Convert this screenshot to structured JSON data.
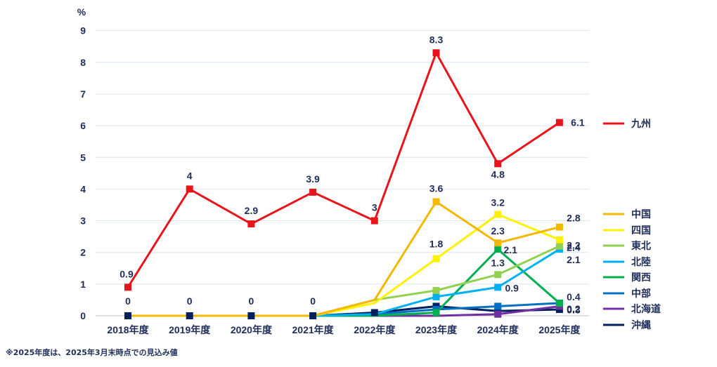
{
  "note": "※2025年度は、2025年3月末時点での見込み値",
  "chart_data": {
    "type": "line",
    "ylabel": "%",
    "ylim": [
      0,
      9
    ],
    "yticks": [
      "0",
      "1",
      "2",
      "3",
      "4",
      "5",
      "6",
      "7",
      "8",
      "9"
    ],
    "categories": [
      "2018年度",
      "2019年度",
      "2020年度",
      "2021年度",
      "2022年度",
      "2023年度",
      "2024年度",
      "2025年度"
    ],
    "grid": true,
    "legend_position": "right",
    "series": [
      {
        "name": "九州",
        "color": "#e8141b",
        "values": [
          0.9,
          4,
          2.9,
          3.9,
          3,
          8.3,
          4.8,
          6.1
        ],
        "labels": [
          "0.9",
          "4",
          "2.9",
          "3.9",
          "3",
          "8.3",
          "4.8",
          "6.1"
        ]
      },
      {
        "name": "中国",
        "color": "#f5b800",
        "values": [
          0,
          0,
          0,
          0,
          0.5,
          3.6,
          2.3,
          2.8
        ],
        "labels": [
          "",
          "",
          "",
          "",
          "",
          "3.6",
          "2.3",
          "2.8"
        ]
      },
      {
        "name": "四国",
        "color": "#fff200",
        "values": [
          0,
          0,
          0,
          0,
          0.4,
          1.8,
          3.2,
          2.4
        ],
        "labels": [
          "",
          "",
          "",
          "",
          "",
          "1.8",
          "3.2",
          "2.4"
        ]
      },
      {
        "name": "東北",
        "color": "#92d050",
        "values": [
          0,
          0,
          0,
          0,
          0.5,
          0.8,
          1.3,
          2.2
        ],
        "labels": [
          "",
          "",
          "",
          "",
          "",
          "",
          "1.3",
          "2.2"
        ]
      },
      {
        "name": "北陸",
        "color": "#00b0f0",
        "values": [
          0,
          0,
          0,
          0,
          0.05,
          0.6,
          0.9,
          2.1
        ],
        "labels": [
          "",
          "",
          "",
          "",
          "",
          "",
          "0.9",
          "2.1"
        ]
      },
      {
        "name": "関西",
        "color": "#00b050",
        "values": [
          0,
          0,
          0,
          0,
          0,
          0.1,
          2.1,
          0.4
        ],
        "labels": [
          "",
          "",
          "",
          "",
          "",
          "",
          "2.1",
          "0.4"
        ]
      },
      {
        "name": "中部",
        "color": "#0070c0",
        "values": [
          0,
          0,
          0,
          0,
          0.05,
          0.2,
          0.3,
          0.4
        ],
        "labels": [
          "",
          "",
          "",
          "",
          "",
          "",
          "",
          ""
        ]
      },
      {
        "name": "北海道",
        "color": "#7030a0",
        "values": [
          0,
          0,
          0,
          0,
          0,
          0,
          0.05,
          0.3
        ],
        "labels": [
          "",
          "",
          "",
          "",
          "",
          "",
          "",
          "0.3"
        ]
      },
      {
        "name": "沖縄",
        "color": "#002060",
        "values": [
          0,
          0,
          0,
          0,
          0.1,
          0.3,
          0.15,
          0.2
        ],
        "labels": [
          "0",
          "0",
          "0",
          "0",
          "",
          "",
          "",
          "0.2"
        ]
      }
    ]
  }
}
